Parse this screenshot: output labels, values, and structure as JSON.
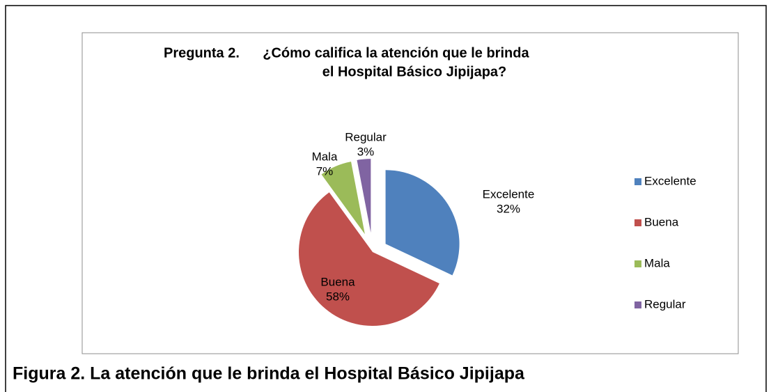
{
  "chart_data": {
    "type": "pie",
    "title": [
      "Pregunta 2.      ¿Cómo califica la atención que le brinda",
      "el Hospital Básico Jipijapa?"
    ],
    "categories": [
      "Excelente",
      "Buena",
      "Mala",
      "Regular"
    ],
    "values": [
      32,
      58,
      7,
      3
    ],
    "value_labels": [
      "32%",
      "58%",
      "7%",
      "3%"
    ],
    "colors": [
      "#4f81bd",
      "#c0504d",
      "#9bbb59",
      "#8064a2"
    ],
    "legend": "right"
  },
  "caption": "Figura 2. La atención que le brinda el Hospital Básico Jipijapa"
}
